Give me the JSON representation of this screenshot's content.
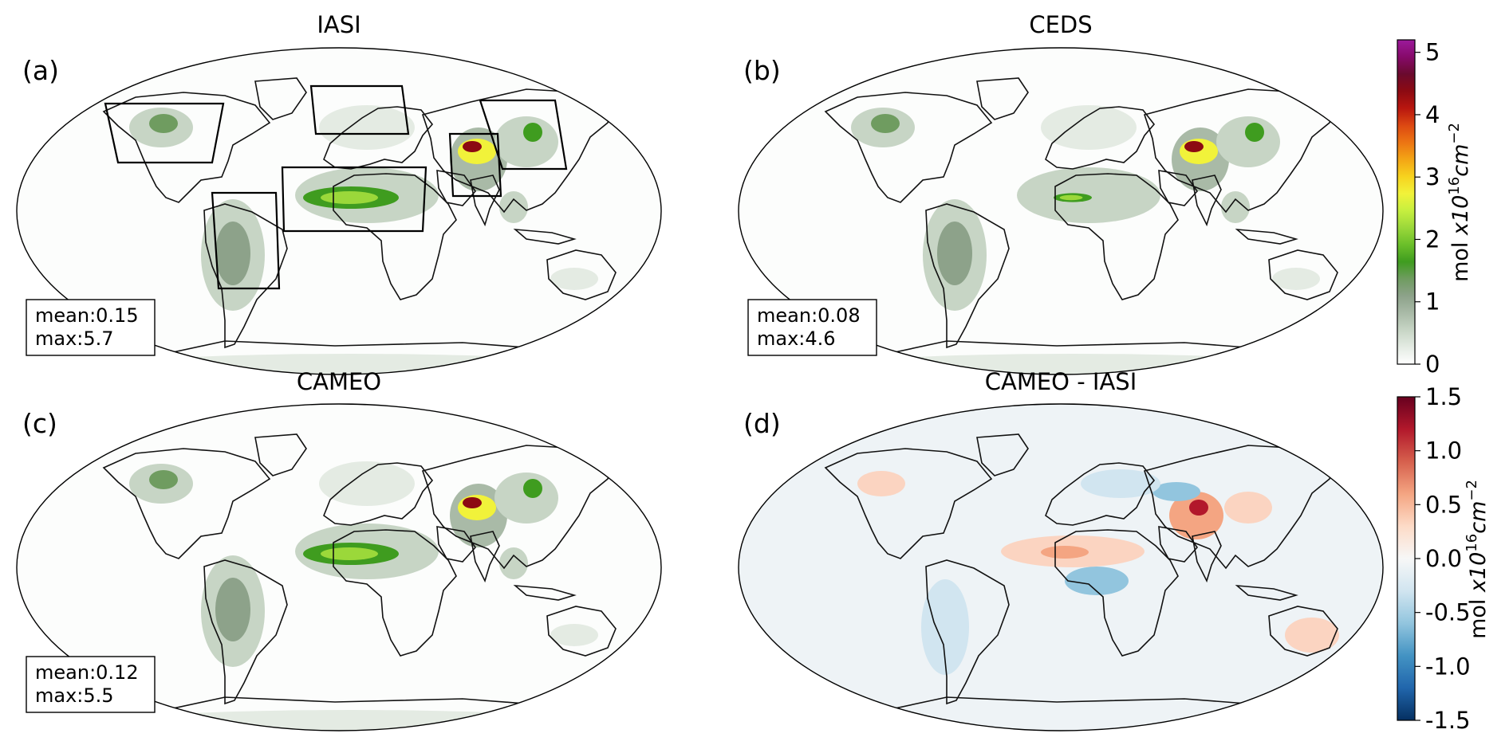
{
  "panels": [
    {
      "id": "a",
      "label": "(a)",
      "title": "IASI",
      "mean_text": "mean:0.15",
      "max_text": "max:5.7",
      "kind": "concentration",
      "regions_outlined": true
    },
    {
      "id": "b",
      "label": "(b)",
      "title": "CEDS",
      "mean_text": "mean:0.08",
      "max_text": "max:4.6",
      "kind": "concentration",
      "regions_outlined": false
    },
    {
      "id": "c",
      "label": "(c)",
      "title": "CAMEO",
      "mean_text": "mean:0.12",
      "max_text": "max:5.5",
      "kind": "concentration",
      "regions_outlined": false
    },
    {
      "id": "d",
      "label": "(d)",
      "title": "CAMEO - IASI",
      "kind": "difference"
    }
  ],
  "colorbars": {
    "top": {
      "label_pre": "mol ",
      "label_x": "x10",
      "label_sup": "16",
      "label_unit": "cm",
      "label_unit_sup": "−2",
      "ticks": [
        "5",
        "4",
        "3",
        "2",
        "1",
        "0"
      ],
      "range": [
        0,
        5.2
      ],
      "colors": [
        "#ffffff",
        "#e4ebe3",
        "#c7d5c5",
        "#a9baa7",
        "#8da28a",
        "#6f9c60",
        "#3f9c1f",
        "#6bbf2a",
        "#9bd83a",
        "#c7ef3f",
        "#f1f23a",
        "#f7d21e",
        "#f3a515",
        "#ec7413",
        "#dc4812",
        "#b8160f",
        "#8c0a12",
        "#6a0a2e",
        "#860a6a",
        "#9c1a9c"
      ]
    },
    "bottom": {
      "label_pre": "mol ",
      "label_x": "x10",
      "label_sup": "16",
      "label_unit": "cm",
      "label_unit_sup": "−2",
      "ticks": [
        "1.5",
        "1.0",
        "0.5",
        "0.0",
        "-0.5",
        "-1.0",
        "-1.5"
      ],
      "range": [
        -1.5,
        1.5
      ],
      "colors": [
        "#67001f",
        "#b2182b",
        "#d6604d",
        "#f4a582",
        "#fddbc7",
        "#f7f7f7",
        "#d1e5f0",
        "#92c5de",
        "#4393c3",
        "#2166ac",
        "#053061"
      ]
    }
  }
}
